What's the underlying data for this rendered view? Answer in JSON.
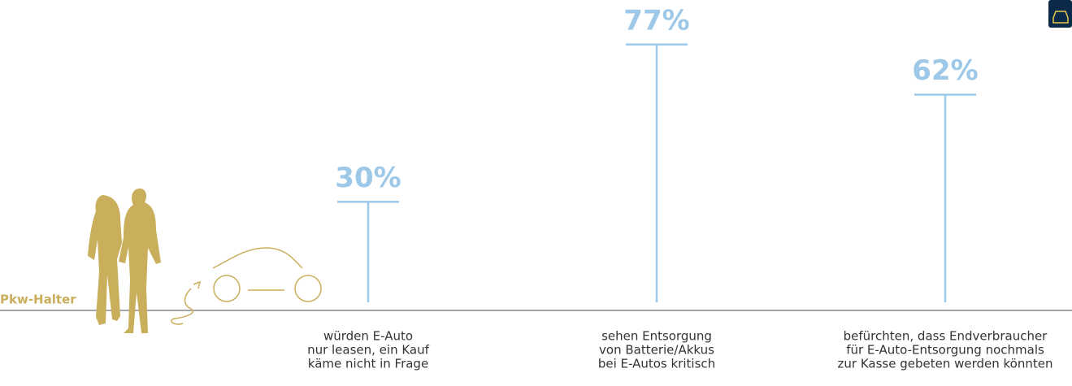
{
  "chart_data": {
    "type": "lollipop",
    "group_label": "Pkw-Halter",
    "categories": [
      [
        "würden E-Auto",
        "nur leasen, ein Kauf",
        "käme nicht in Frage"
      ],
      [
        "sehen Entsorgung",
        "von Batterie/Akkus",
        "bei E-Autos kritisch"
      ],
      [
        "befürchten, dass Endverbraucher",
        "für E-Auto-Entsorgung nochmals",
        "zur Kasse gebeten werden könnten"
      ]
    ],
    "values": [
      30,
      77,
      62
    ],
    "value_labels": [
      "30%",
      "77%",
      "62%"
    ],
    "color": "#9dc8e8",
    "accent_color": "#c9ae5c"
  }
}
